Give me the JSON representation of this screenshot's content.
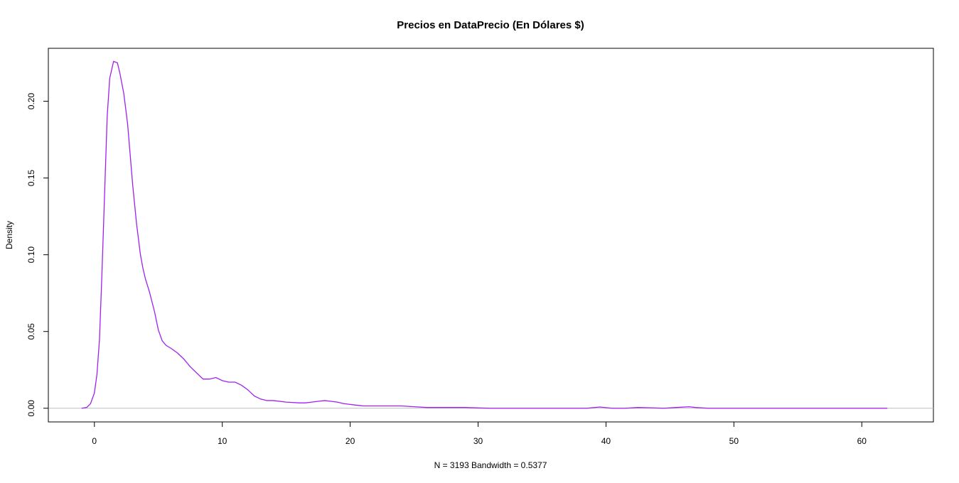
{
  "chart_data": {
    "type": "line",
    "title": "Precios en DataPrecio (En Dólares $)",
    "xlabel": "N = 3193   Bandwidth = 0.5377",
    "ylabel": "Density",
    "xlim": [
      -3.6,
      65.6
    ],
    "ylim": [
      -0.0089,
      0.2345
    ],
    "x_ticks": [
      0,
      10,
      20,
      30,
      40,
      50,
      60
    ],
    "y_ticks": [
      0.0,
      0.05,
      0.1,
      0.15,
      0.2
    ],
    "x_tick_labels": [
      "0",
      "10",
      "20",
      "30",
      "40",
      "50",
      "60"
    ],
    "y_tick_labels": [
      "0.00",
      "0.05",
      "0.10",
      "0.15",
      "0.20"
    ],
    "grid": false,
    "baseline": 0,
    "colors": {
      "line": "#a020f0",
      "baseline": "#bebebe",
      "frame": "#000000"
    },
    "series": [
      {
        "x": [
          -1.0,
          -0.6,
          -0.3,
          0,
          0.2,
          0.4,
          0.6,
          0.8,
          1.0,
          1.2,
          1.5,
          1.8,
          2.0,
          2.3,
          2.6,
          2.8,
          3.0,
          3.3,
          3.6,
          3.8,
          4.0,
          4.3,
          4.7,
          5.0,
          5.3,
          5.6,
          6.0,
          6.5,
          7.0,
          7.5,
          8.0,
          8.5,
          9.0,
          9.5,
          10.0,
          10.5,
          11.0,
          11.5,
          12.0,
          12.5,
          13.0,
          13.5,
          14.0,
          15.0,
          16.0,
          16.5,
          17.0,
          17.5,
          18.0,
          18.5,
          19.0,
          19.5,
          20.0,
          20.5,
          21.0,
          22.0,
          23.0,
          24.0,
          25.0,
          26.0,
          27.0,
          28.0,
          29.0,
          30.0,
          31.0,
          32.0,
          33.0,
          35.0,
          37.0,
          38.5,
          39.5,
          40.5,
          41.5,
          42.5,
          43.5,
          44.5,
          45.5,
          46.5,
          47.0,
          48.0,
          50.0,
          55.0,
          60.0,
          62.0
        ],
        "y": [
          0.0,
          0.0005,
          0.003,
          0.01,
          0.022,
          0.045,
          0.09,
          0.14,
          0.19,
          0.215,
          0.226,
          0.225,
          0.218,
          0.205,
          0.185,
          0.165,
          0.145,
          0.12,
          0.1,
          0.091,
          0.084,
          0.076,
          0.063,
          0.051,
          0.044,
          0.041,
          0.039,
          0.036,
          0.032,
          0.027,
          0.023,
          0.019,
          0.019,
          0.02,
          0.018,
          0.017,
          0.017,
          0.015,
          0.012,
          0.008,
          0.006,
          0.005,
          0.005,
          0.004,
          0.0035,
          0.0035,
          0.004,
          0.0045,
          0.005,
          0.0045,
          0.004,
          0.003,
          0.0025,
          0.002,
          0.0015,
          0.0015,
          0.0015,
          0.0015,
          0.001,
          0.0005,
          0.0005,
          0.0005,
          0.0005,
          0.0002,
          0.0,
          0.0,
          0.0,
          0.0,
          0.0,
          0.0,
          0.0008,
          0.0,
          0.0,
          0.0005,
          0.0003,
          0.0,
          0.0005,
          0.001,
          0.0005,
          0.0,
          0.0,
          0.0,
          0.0,
          0.0
        ]
      }
    ]
  }
}
